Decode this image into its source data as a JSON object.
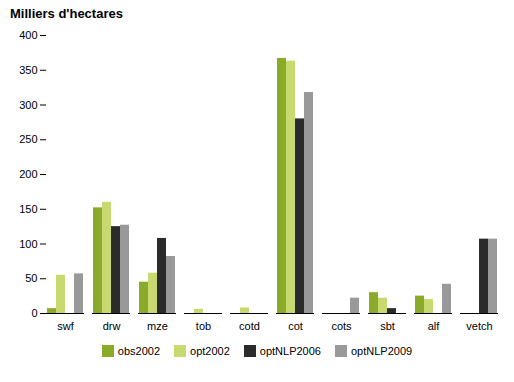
{
  "chart_data": {
    "type": "bar",
    "title": "Milliers d'hectares",
    "categories": [
      "swf",
      "drw",
      "mze",
      "tob",
      "cotd",
      "cot",
      "cots",
      "sbt",
      "alf",
      "vetch"
    ],
    "series": [
      {
        "name": "obs2002",
        "color": "#8aab2a",
        "values": [
          7,
          152,
          45,
          0,
          0,
          367,
          0,
          30,
          25,
          0
        ]
      },
      {
        "name": "opt2002",
        "color": "#c8d96f",
        "values": [
          55,
          160,
          58,
          6,
          8,
          363,
          0,
          22,
          20,
          0
        ]
      },
      {
        "name": "optNLP2006",
        "color": "#2b2b2b",
        "values": [
          0,
          125,
          108,
          0,
          0,
          280,
          0,
          7,
          0,
          107
        ]
      },
      {
        "name": "optNLP2009",
        "color": "#999999",
        "values": [
          57,
          127,
          82,
          0,
          0,
          318,
          22,
          0,
          42,
          107
        ]
      }
    ],
    "ylim": [
      0,
      400
    ],
    "yticks": [
      0,
      50,
      100,
      150,
      200,
      250,
      300,
      350,
      400
    ],
    "grid": false,
    "legend": "bottom"
  }
}
